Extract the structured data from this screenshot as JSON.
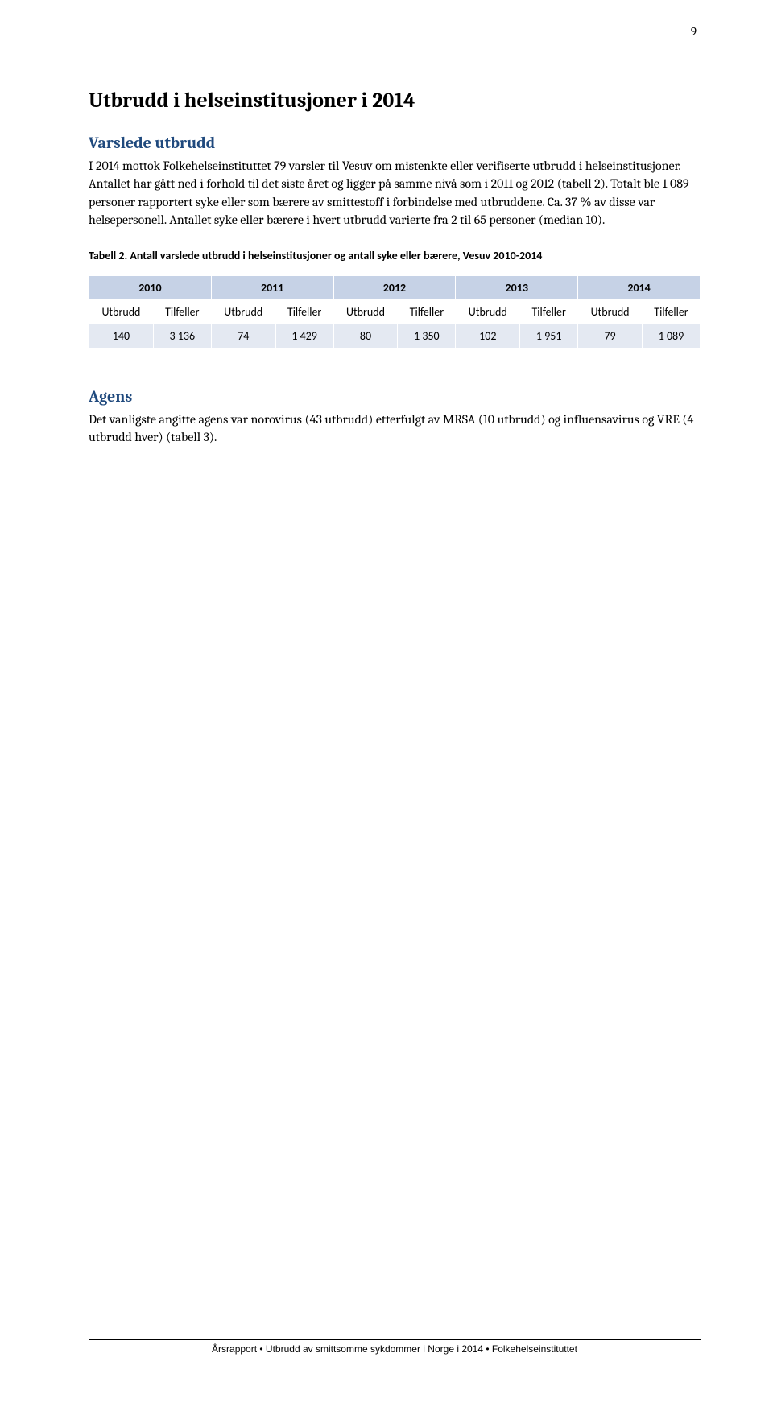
{
  "page_number": "9",
  "heading_main": "Utbrudd i helseinstitusjoner i 2014",
  "heading_sub1": "Varslede utbrudd",
  "paragraph1": "I 2014 mottok Folkehelseinstituttet 79 varsler til Vesuv om mistenkte eller verifiserte utbrudd i helseinstitusjoner. Antallet har gått ned i forhold til det siste året og ligger på samme nivå som i 2011 og 2012 (tabell 2). Totalt ble 1 089 personer rapportert syke eller som bærere av smittestoff i forbindelse med utbruddene. Ca. 37 % av disse var helsepersonell. Antallet syke eller bærere i hvert utbrudd varierte fra 2 til 65 personer (median 10).",
  "table_caption": "Tabell 2. Antall varslede utbrudd i helseinstitusjoner og antall syke eller bærere, Vesuv 2010-2014",
  "table": {
    "header_bg": "#c6d2e6",
    "data_bg": "#e4e9f2",
    "years": [
      "2010",
      "2011",
      "2012",
      "2013",
      "2014"
    ],
    "sub_cols": [
      "Utbrudd",
      "Tilfeller",
      "Utbrudd",
      "Tilfeller",
      "Utbrudd",
      "Tilfeller",
      "Utbrudd",
      "Tilfeller",
      "Utbrudd",
      "Tilfeller"
    ],
    "data_row": [
      "140",
      "3 136",
      "74",
      "1 429",
      "80",
      "1 350",
      "102",
      "1 951",
      "79",
      "1 089"
    ]
  },
  "heading_sub2": "Agens",
  "paragraph2": "Det vanligste angitte agens var norovirus (43 utbrudd) etterfulgt av MRSA (10 utbrudd) og influensavirus og VRE (4 utbrudd hver) (tabell 3).",
  "footer": "Årsrapport • Utbrudd av smittsomme sykdommer i Norge i 2014 • Folkehelseinstituttet"
}
